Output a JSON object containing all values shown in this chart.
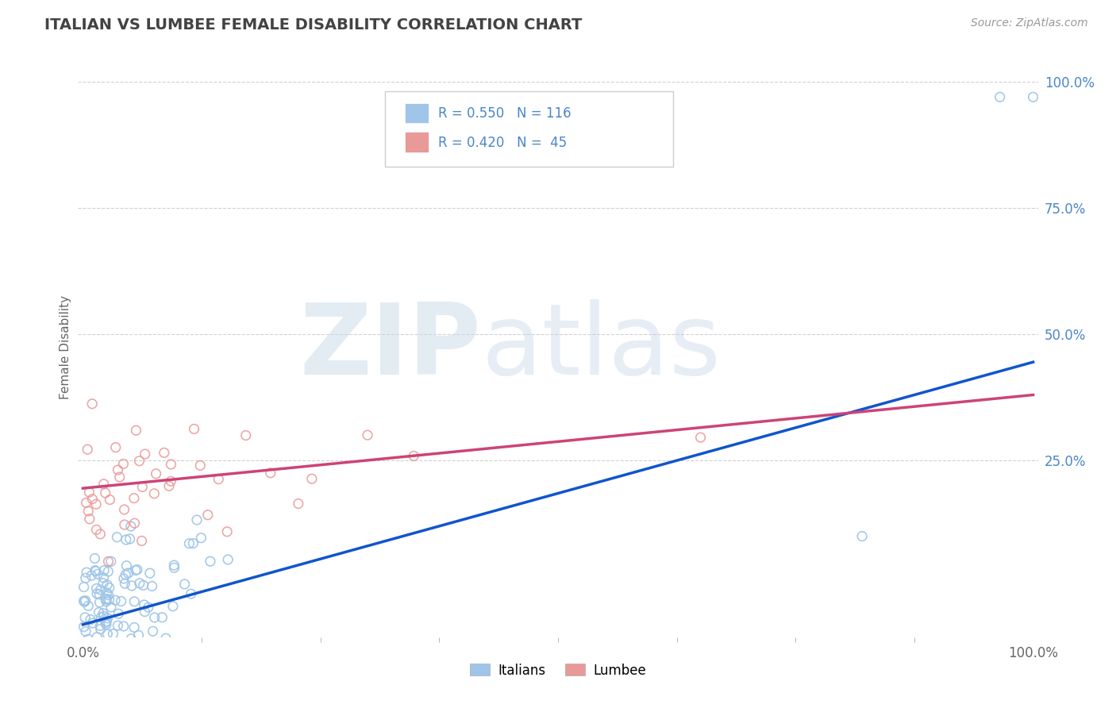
{
  "title": "ITALIAN VS LUMBEE FEMALE DISABILITY CORRELATION CHART",
  "source": "Source: ZipAtlas.com",
  "ylabel": "Female Disability",
  "xlabel": "",
  "xlim": [
    0.0,
    1.0
  ],
  "ylim": [
    0.0,
    1.0
  ],
  "x_ticks": [
    0.0,
    1.0
  ],
  "x_tick_labels": [
    "0.0%",
    "100.0%"
  ],
  "y_ticks_right": [
    0.25,
    0.5,
    0.75,
    1.0
  ],
  "y_tick_labels_right": [
    "25.0%",
    "50.0%",
    "75.0%",
    "100.0%"
  ],
  "grid_color": "#cccccc",
  "background_color": "#ffffff",
  "italian_color": "#9fc5e8",
  "lumbee_color": "#ea9999",
  "italian_line_color": "#1155cc",
  "lumbee_line_color": "#cc4477",
  "R_italian": 0.55,
  "N_italian": 116,
  "R_lumbee": 0.42,
  "N_lumbee": 45,
  "title_color": "#434343",
  "title_fontsize": 14,
  "watermark_zip": "ZIP",
  "watermark_atlas": "atlas",
  "legend_label_italian": "Italians",
  "legend_label_lumbee": "Lumbee",
  "label_color": "#4a86c8",
  "tick_color": "#666666"
}
